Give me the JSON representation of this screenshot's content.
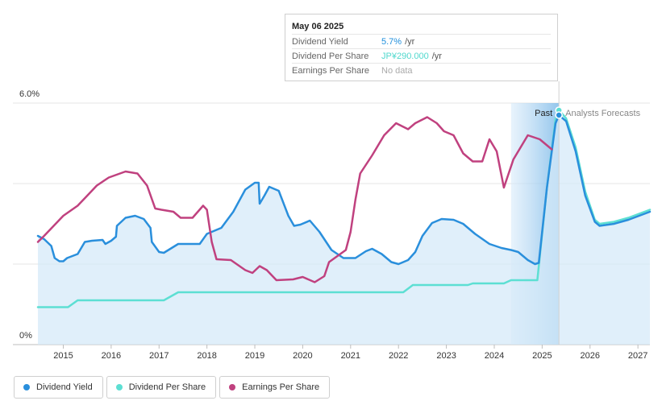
{
  "chart_data": {
    "type": "line",
    "title": "",
    "xlabel": "",
    "ylabel": "",
    "ylim": [
      0,
      6.0
    ],
    "y_ticks": [
      "0%",
      "6.0%"
    ],
    "x_ticks": [
      "2015",
      "2016",
      "2017",
      "2018",
      "2019",
      "2020",
      "2021",
      "2022",
      "2023",
      "2024",
      "2025",
      "2026",
      "2027"
    ],
    "x_tick_values": [
      2015,
      2016,
      2017,
      2018,
      2019,
      2020,
      2021,
      2022,
      2023,
      2024,
      2025,
      2026,
      2027
    ],
    "xlim": [
      2014.47,
      2027.25
    ],
    "regions": {
      "past_label": "Past",
      "forecast_label": "Analysts Forecasts",
      "divider_x": 2025.35,
      "highlight_start": 2024.35
    },
    "series": [
      {
        "name": "Dividend Yield",
        "color": "#2a8fdc",
        "filled": true,
        "points": [
          [
            2014.47,
            2.7
          ],
          [
            2014.6,
            2.62
          ],
          [
            2014.75,
            2.45
          ],
          [
            2014.82,
            2.15
          ],
          [
            2014.92,
            2.07
          ],
          [
            2015.0,
            2.07
          ],
          [
            2015.08,
            2.15
          ],
          [
            2015.3,
            2.25
          ],
          [
            2015.45,
            2.55
          ],
          [
            2015.6,
            2.58
          ],
          [
            2015.82,
            2.6
          ],
          [
            2015.88,
            2.5
          ],
          [
            2016.0,
            2.58
          ],
          [
            2016.1,
            2.68
          ],
          [
            2016.12,
            2.95
          ],
          [
            2016.3,
            3.15
          ],
          [
            2016.5,
            3.2
          ],
          [
            2016.68,
            3.12
          ],
          [
            2016.82,
            2.9
          ],
          [
            2016.85,
            2.55
          ],
          [
            2017.0,
            2.3
          ],
          [
            2017.1,
            2.28
          ],
          [
            2017.4,
            2.5
          ],
          [
            2017.85,
            2.5
          ],
          [
            2018.0,
            2.75
          ],
          [
            2018.3,
            2.9
          ],
          [
            2018.55,
            3.3
          ],
          [
            2018.8,
            3.85
          ],
          [
            2019.0,
            4.02
          ],
          [
            2019.08,
            4.02
          ],
          [
            2019.1,
            3.5
          ],
          [
            2019.2,
            3.7
          ],
          [
            2019.3,
            3.92
          ],
          [
            2019.5,
            3.82
          ],
          [
            2019.7,
            3.2
          ],
          [
            2019.82,
            2.95
          ],
          [
            2019.95,
            2.98
          ],
          [
            2020.15,
            3.08
          ],
          [
            2020.35,
            2.8
          ],
          [
            2020.6,
            2.35
          ],
          [
            2020.85,
            2.15
          ],
          [
            2021.1,
            2.15
          ],
          [
            2021.32,
            2.32
          ],
          [
            2021.45,
            2.38
          ],
          [
            2021.65,
            2.25
          ],
          [
            2021.85,
            2.05
          ],
          [
            2022.0,
            2.0
          ],
          [
            2022.2,
            2.1
          ],
          [
            2022.35,
            2.3
          ],
          [
            2022.5,
            2.7
          ],
          [
            2022.7,
            3.02
          ],
          [
            2022.9,
            3.12
          ],
          [
            2023.15,
            3.1
          ],
          [
            2023.35,
            3.0
          ],
          [
            2023.6,
            2.75
          ],
          [
            2023.9,
            2.5
          ],
          [
            2024.15,
            2.4
          ],
          [
            2024.35,
            2.35
          ],
          [
            2024.5,
            2.3
          ],
          [
            2024.7,
            2.1
          ],
          [
            2024.85,
            2.0
          ],
          [
            2024.93,
            2.03
          ],
          [
            2025.1,
            3.9
          ],
          [
            2025.28,
            5.5
          ],
          [
            2025.35,
            5.7
          ],
          [
            2025.5,
            5.55
          ],
          [
            2025.7,
            4.8
          ],
          [
            2025.9,
            3.7
          ],
          [
            2026.1,
            3.05
          ],
          [
            2026.2,
            2.95
          ],
          [
            2026.5,
            3.0
          ],
          [
            2026.8,
            3.1
          ],
          [
            2027.25,
            3.3
          ]
        ]
      },
      {
        "name": "Dividend Per Share",
        "color": "#5ddfd3",
        "filled": false,
        "points": [
          [
            2014.47,
            0.93
          ],
          [
            2015.1,
            0.93
          ],
          [
            2015.3,
            1.1
          ],
          [
            2016.0,
            1.1
          ],
          [
            2017.1,
            1.1
          ],
          [
            2017.4,
            1.3
          ],
          [
            2022.1,
            1.3
          ],
          [
            2022.3,
            1.48
          ],
          [
            2023.45,
            1.48
          ],
          [
            2023.55,
            1.52
          ],
          [
            2024.2,
            1.52
          ],
          [
            2024.35,
            1.6
          ],
          [
            2024.9,
            1.6
          ],
          [
            2025.1,
            3.9
          ],
          [
            2025.28,
            5.6
          ],
          [
            2025.35,
            5.82
          ],
          [
            2025.5,
            5.62
          ],
          [
            2025.7,
            4.9
          ],
          [
            2025.9,
            3.8
          ],
          [
            2026.1,
            3.1
          ],
          [
            2026.2,
            3.0
          ],
          [
            2026.5,
            3.05
          ],
          [
            2026.8,
            3.15
          ],
          [
            2027.25,
            3.35
          ]
        ]
      },
      {
        "name": "Earnings Per Share",
        "color": "#c0417f",
        "filled": false,
        "points": [
          [
            2014.47,
            2.55
          ],
          [
            2014.6,
            2.7
          ],
          [
            2014.8,
            2.95
          ],
          [
            2015.0,
            3.2
          ],
          [
            2015.3,
            3.45
          ],
          [
            2015.5,
            3.7
          ],
          [
            2015.7,
            3.95
          ],
          [
            2015.95,
            4.15
          ],
          [
            2016.3,
            4.3
          ],
          [
            2016.55,
            4.25
          ],
          [
            2016.75,
            3.95
          ],
          [
            2016.92,
            3.38
          ],
          [
            2017.05,
            3.35
          ],
          [
            2017.3,
            3.3
          ],
          [
            2017.45,
            3.15
          ],
          [
            2017.7,
            3.15
          ],
          [
            2017.92,
            3.45
          ],
          [
            2018.0,
            3.35
          ],
          [
            2018.1,
            2.55
          ],
          [
            2018.2,
            2.12
          ],
          [
            2018.5,
            2.1
          ],
          [
            2018.8,
            1.85
          ],
          [
            2018.95,
            1.78
          ],
          [
            2019.1,
            1.95
          ],
          [
            2019.25,
            1.85
          ],
          [
            2019.45,
            1.6
          ],
          [
            2019.8,
            1.62
          ],
          [
            2020.0,
            1.68
          ],
          [
            2020.25,
            1.55
          ],
          [
            2020.45,
            1.7
          ],
          [
            2020.55,
            2.05
          ],
          [
            2020.9,
            2.35
          ],
          [
            2021.0,
            2.8
          ],
          [
            2021.1,
            3.6
          ],
          [
            2021.2,
            4.25
          ],
          [
            2021.45,
            4.7
          ],
          [
            2021.7,
            5.2
          ],
          [
            2021.95,
            5.5
          ],
          [
            2022.2,
            5.35
          ],
          [
            2022.35,
            5.5
          ],
          [
            2022.6,
            5.65
          ],
          [
            2022.8,
            5.5
          ],
          [
            2022.95,
            5.3
          ],
          [
            2023.15,
            5.2
          ],
          [
            2023.35,
            4.75
          ],
          [
            2023.55,
            4.55
          ],
          [
            2023.75,
            4.55
          ],
          [
            2023.9,
            5.1
          ],
          [
            2024.05,
            4.8
          ],
          [
            2024.2,
            3.9
          ],
          [
            2024.4,
            4.6
          ],
          [
            2024.7,
            5.2
          ],
          [
            2024.95,
            5.1
          ],
          [
            2025.2,
            4.85
          ]
        ]
      }
    ]
  },
  "tooltip": {
    "date": "May 06 2025",
    "rows": [
      {
        "label": "Dividend Yield",
        "value": "5.7%",
        "unit": "/yr"
      },
      {
        "label": "Dividend Per Share",
        "value": "JP¥290.000",
        "unit": "/yr"
      },
      {
        "label": "Earnings Per Share",
        "value": "No data",
        "unit": ""
      }
    ],
    "marker_x": 2025.35,
    "marker_yield": 5.7,
    "marker_dps": 5.82
  },
  "legend": {
    "items": [
      {
        "label": "Dividend Yield",
        "color": "#2a8fdc"
      },
      {
        "label": "Dividend Per Share",
        "color": "#5ddfd3"
      },
      {
        "label": "Earnings Per Share",
        "color": "#c0417f"
      }
    ]
  }
}
